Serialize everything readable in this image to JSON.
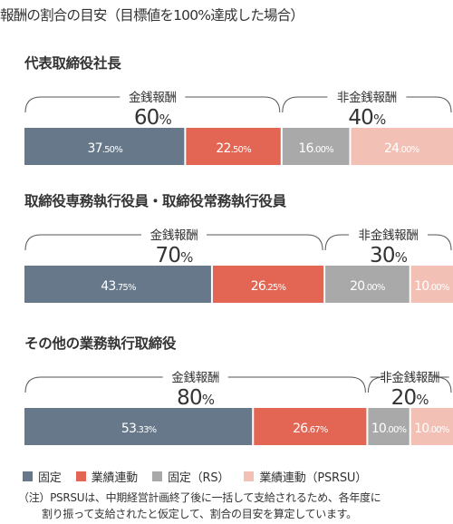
{
  "title": "報酬の割合の目安（目標値を100%達成した場合）",
  "colors": {
    "fixed": "#66788a",
    "performance": "#e36654",
    "fixed_rs": "#a9a9a9",
    "psrsu": "#f2c0b4",
    "bracket": "#555555",
    "text": "#333333"
  },
  "legend": [
    {
      "label": "固定",
      "key": "fixed"
    },
    {
      "label": "業績連動",
      "key": "performance"
    },
    {
      "label": "固定（RS）",
      "key": "fixed_rs"
    },
    {
      "label": "業績連動（PSRSU）",
      "key": "psrsu"
    }
  ],
  "note": {
    "line1": "（注）PSRSUは、中期経営計画終了後に一括して支給されるため、各年度に",
    "line2": "割り振って支給されたと仮定して、割合の目安を算定しています。"
  },
  "chart_data": [
    {
      "type": "bar",
      "stacked": "horizontal",
      "title": "代表取締役社長",
      "series": [
        {
          "name": "固定",
          "key": "fixed",
          "value": 37.5,
          "label": "37.50%"
        },
        {
          "name": "業績連動",
          "key": "performance",
          "value": 22.5,
          "label": "22.50%"
        },
        {
          "name": "固定（RS）",
          "key": "fixed_rs",
          "value": 16.0,
          "label": "16.00%"
        },
        {
          "name": "業績連動（PSRSU）",
          "key": "psrsu",
          "value": 24.0,
          "label": "24.00%"
        }
      ],
      "brackets": [
        {
          "label": "金銭報酬",
          "value": "60%",
          "span": [
            0,
            2
          ]
        },
        {
          "label": "非金銭報酬",
          "value": "40%",
          "span": [
            2,
            4
          ]
        }
      ]
    },
    {
      "type": "bar",
      "stacked": "horizontal",
      "title": "取締役専務執行役員・取締役常務執行役員",
      "series": [
        {
          "name": "固定",
          "key": "fixed",
          "value": 43.75,
          "label": "43.75%"
        },
        {
          "name": "業績連動",
          "key": "performance",
          "value": 26.25,
          "label": "26.25%"
        },
        {
          "name": "固定（RS）",
          "key": "fixed_rs",
          "value": 20.0,
          "label": "20.00%"
        },
        {
          "name": "業績連動（PSRSU）",
          "key": "psrsu",
          "value": 10.0,
          "label": "10.00%"
        }
      ],
      "brackets": [
        {
          "label": "金銭報酬",
          "value": "70%",
          "span": [
            0,
            2
          ]
        },
        {
          "label": "非金銭報酬",
          "value": "30%",
          "span": [
            2,
            4
          ]
        }
      ]
    },
    {
      "type": "bar",
      "stacked": "horizontal",
      "title": "その他の業務執行取締役",
      "series": [
        {
          "name": "固定",
          "key": "fixed",
          "value": 53.33,
          "label": "53.33%"
        },
        {
          "name": "業績連動",
          "key": "performance",
          "value": 26.67,
          "label": "26.67%"
        },
        {
          "name": "固定（RS）",
          "key": "fixed_rs",
          "value": 10.0,
          "label": "10.00%"
        },
        {
          "name": "業績連動（PSRSU）",
          "key": "psrsu",
          "value": 10.0,
          "label": "10.00%"
        }
      ],
      "brackets": [
        {
          "label": "金銭報酬",
          "value": "80%",
          "span": [
            0,
            2
          ]
        },
        {
          "label": "非金銭報酬",
          "value": "20%",
          "span": [
            2,
            4
          ]
        }
      ]
    }
  ]
}
